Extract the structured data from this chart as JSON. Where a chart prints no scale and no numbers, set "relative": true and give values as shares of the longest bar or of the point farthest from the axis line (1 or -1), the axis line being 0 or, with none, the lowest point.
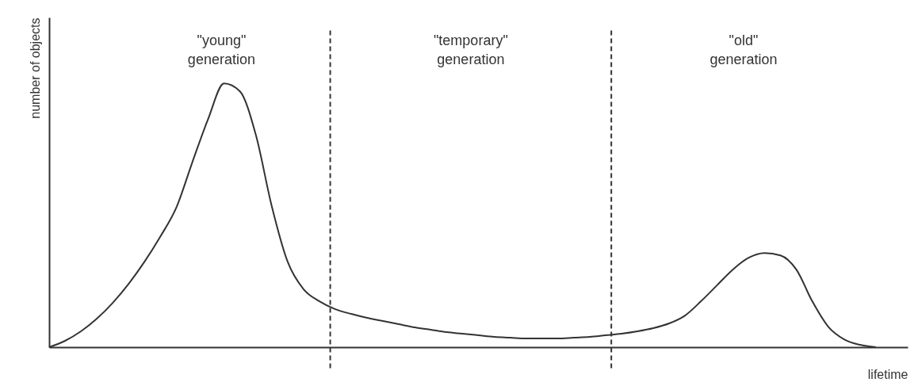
{
  "chart_data": {
    "type": "line",
    "relative": true,
    "xlabel": "lifetime",
    "ylabel": "number of objects",
    "marker": "none",
    "line_style": "solid",
    "categories": [
      null,
      null,
      null,
      null,
      null,
      null,
      null,
      null,
      null,
      null,
      null,
      null,
      null,
      null,
      null,
      null,
      null,
      null,
      null,
      null,
      null,
      null,
      null,
      null,
      null,
      null,
      null,
      null,
      null,
      null,
      null,
      null,
      null,
      null,
      null,
      null,
      null,
      null,
      null,
      null,
      null,
      null,
      null,
      null,
      null,
      null,
      null,
      null,
      null,
      null,
      null,
      null,
      null
    ],
    "series": [
      {
        "color": "#333333",
        "values": [
          0,
          0.024,
          0.06,
          0.108,
          0.168,
          0.24,
          0.324,
          0.42,
          0.529,
          0.7,
          0.865,
          1,
          0.97,
          0.805,
          0.535,
          0.324,
          0.22,
          0.174,
          0.144,
          0.126,
          0.111,
          0.099,
          0.087,
          0.075,
          0.066,
          0.057,
          0.051,
          0.045,
          0.039,
          0.036,
          0.033,
          0.033,
          0.033,
          0.036,
          0.039,
          0.045,
          0.051,
          0.06,
          0.072,
          0.09,
          0.12,
          0.174,
          0.234,
          0.294,
          0.339,
          0.357,
          0.348,
          0.294,
          0.174,
          0.078,
          0.03,
          0.009,
          0
        ]
      }
    ],
    "annotations": [
      "\"young\" generation",
      "\"temporary\" generation",
      "\"old\" generation"
    ]
  }
}
